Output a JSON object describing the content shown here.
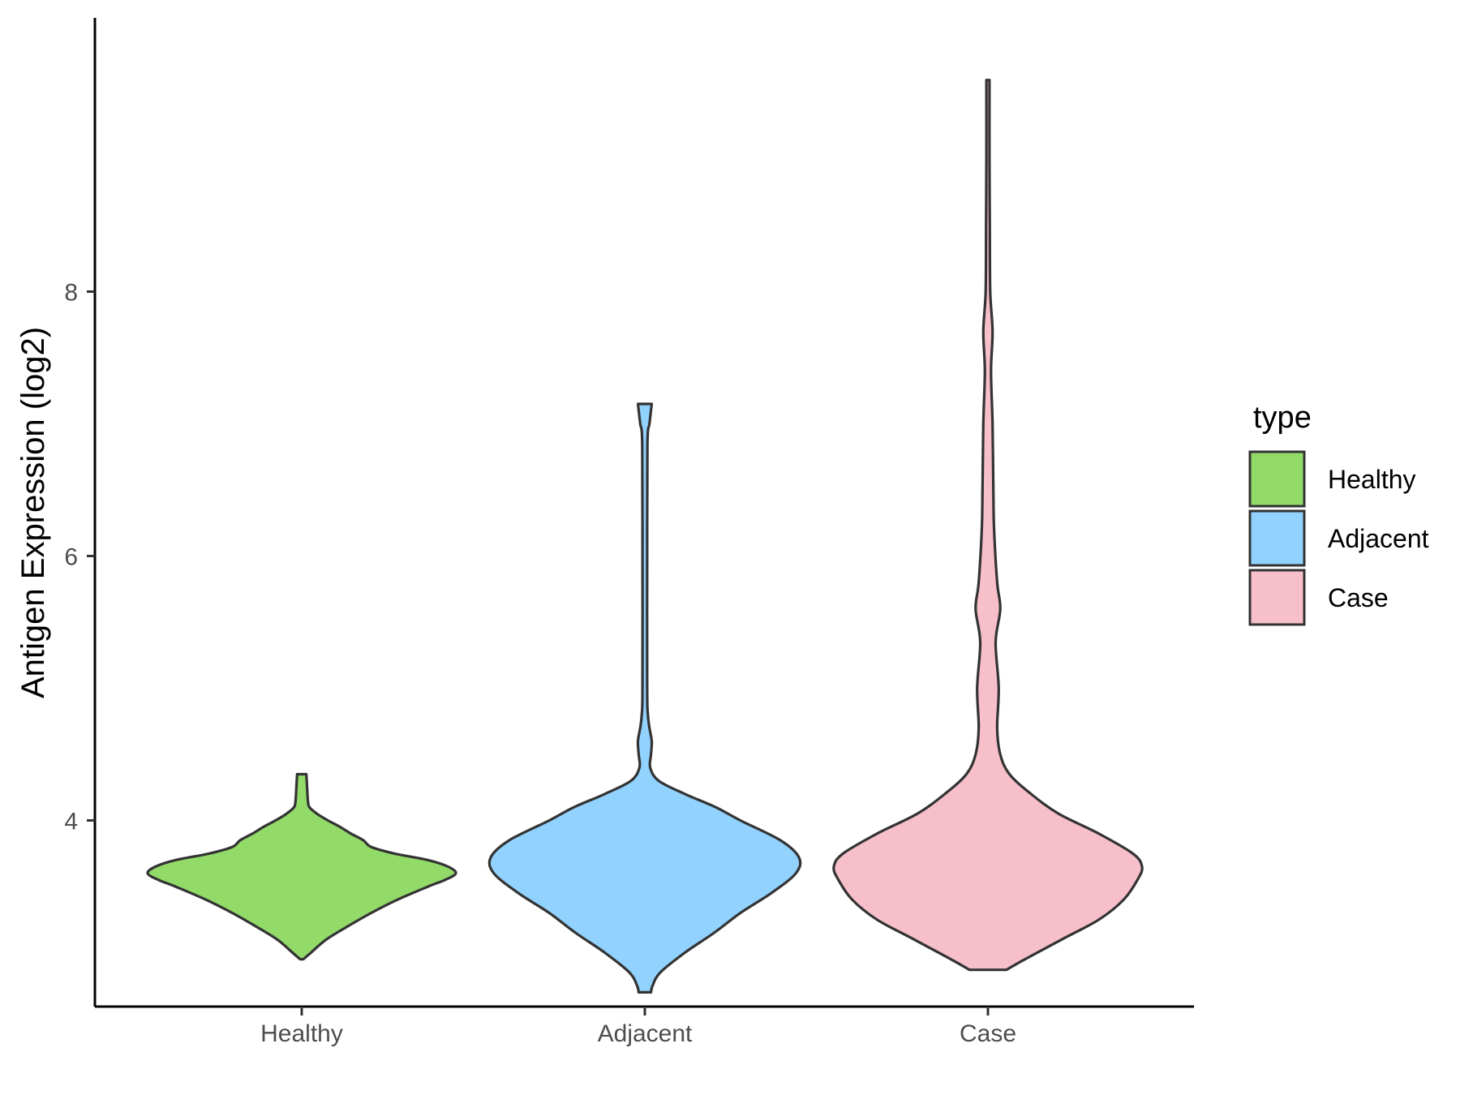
{
  "chart_data": {
    "type": "violin",
    "ylabel": "Antigen Expression (log2)",
    "xlabel": "",
    "categories": [
      "Healthy",
      "Adjacent",
      "Case"
    ],
    "y_ticks": [
      4,
      6,
      8
    ],
    "y_tick_labels": [
      "4",
      "6",
      "8"
    ],
    "ylim": [
      2.55,
      10.0
    ],
    "grid": false,
    "legend": {
      "title": "type",
      "position": "right",
      "entries": [
        {
          "label": "Healthy",
          "color": "#93DB69"
        },
        {
          "label": "Adjacent",
          "color": "#92D2FF"
        },
        {
          "label": "Case",
          "color": "#F7BFCA"
        }
      ]
    },
    "series": [
      {
        "category": "Healthy",
        "color": "#93DB69",
        "min": 2.95,
        "max": 4.35,
        "density_profile": [
          [
            2.95,
            0.01
          ],
          [
            3.0,
            0.06
          ],
          [
            3.1,
            0.16
          ],
          [
            3.2,
            0.3
          ],
          [
            3.3,
            0.45
          ],
          [
            3.4,
            0.62
          ],
          [
            3.5,
            0.82
          ],
          [
            3.55,
            0.93
          ],
          [
            3.6,
            1.0
          ],
          [
            3.65,
            0.95
          ],
          [
            3.7,
            0.82
          ],
          [
            3.75,
            0.6
          ],
          [
            3.8,
            0.45
          ],
          [
            3.85,
            0.4
          ],
          [
            3.9,
            0.32
          ],
          [
            3.95,
            0.25
          ],
          [
            4.0,
            0.17
          ],
          [
            4.05,
            0.1
          ],
          [
            4.1,
            0.05
          ],
          [
            4.15,
            0.04
          ],
          [
            4.25,
            0.035
          ],
          [
            4.35,
            0.03
          ]
        ]
      },
      {
        "category": "Adjacent",
        "color": "#92D2FF",
        "min": 2.7,
        "max": 7.15,
        "density_profile": [
          [
            2.7,
            0.04
          ],
          [
            2.75,
            0.05
          ],
          [
            2.85,
            0.1
          ],
          [
            3.0,
            0.26
          ],
          [
            3.15,
            0.45
          ],
          [
            3.3,
            0.62
          ],
          [
            3.45,
            0.82
          ],
          [
            3.6,
            0.98
          ],
          [
            3.72,
            1.0
          ],
          [
            3.85,
            0.88
          ],
          [
            4.0,
            0.62
          ],
          [
            4.1,
            0.46
          ],
          [
            4.2,
            0.26
          ],
          [
            4.3,
            0.09
          ],
          [
            4.4,
            0.035
          ],
          [
            4.5,
            0.04
          ],
          [
            4.6,
            0.045
          ],
          [
            4.7,
            0.03
          ],
          [
            4.8,
            0.02
          ],
          [
            5.0,
            0.015
          ],
          [
            6.0,
            0.015
          ],
          [
            6.85,
            0.017
          ],
          [
            7.0,
            0.03
          ],
          [
            7.15,
            0.045
          ]
        ]
      },
      {
        "category": "Case",
        "color": "#F7BFCA",
        "min": 2.87,
        "max": 9.6,
        "density_profile": [
          [
            2.87,
            0.12
          ],
          [
            2.95,
            0.24
          ],
          [
            3.1,
            0.48
          ],
          [
            3.25,
            0.72
          ],
          [
            3.4,
            0.88
          ],
          [
            3.55,
            0.97
          ],
          [
            3.65,
            1.0
          ],
          [
            3.75,
            0.94
          ],
          [
            3.9,
            0.72
          ],
          [
            4.05,
            0.46
          ],
          [
            4.2,
            0.28
          ],
          [
            4.35,
            0.14
          ],
          [
            4.5,
            0.08
          ],
          [
            4.7,
            0.06
          ],
          [
            5.0,
            0.07
          ],
          [
            5.35,
            0.05
          ],
          [
            5.6,
            0.08
          ],
          [
            5.8,
            0.06
          ],
          [
            6.2,
            0.04
          ],
          [
            6.5,
            0.035
          ],
          [
            7.0,
            0.03
          ],
          [
            7.4,
            0.02
          ],
          [
            7.7,
            0.03
          ],
          [
            8.0,
            0.015
          ],
          [
            8.5,
            0.012
          ],
          [
            9.0,
            0.01
          ],
          [
            9.6,
            0.01
          ]
        ]
      }
    ]
  }
}
